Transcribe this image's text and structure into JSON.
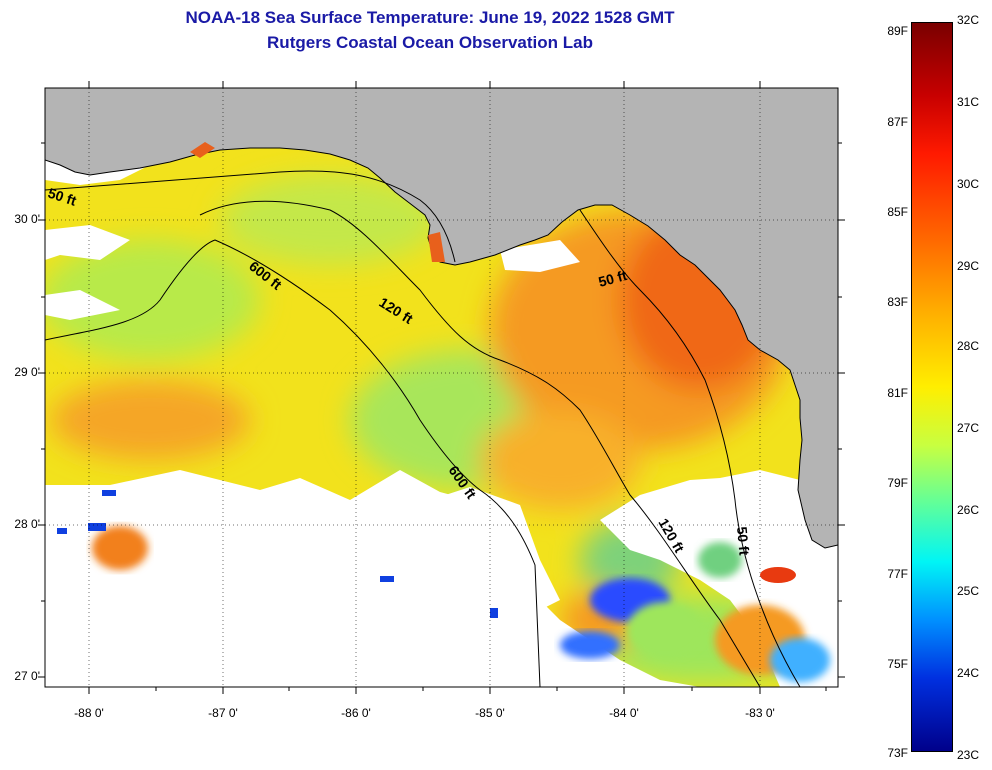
{
  "title": {
    "line1": "NOAA-18 Sea Surface Temperature:  June 19, 2022 1528 GMT",
    "line2": "Rutgers Coastal Ocean Observation Lab"
  },
  "map": {
    "latitude_labels": [
      "30 0'",
      "29 0'",
      "28 0'",
      "27 0'"
    ],
    "longitude_labels": [
      "-88 0'",
      "-87 0'",
      "-86 0'",
      "-85 0'",
      "-84 0'",
      "-83 0'"
    ],
    "contour_labels": [
      "50 ft",
      "600 ft",
      "120 ft",
      "50 ft",
      "600 ft",
      "120 ft",
      "50 ft"
    ],
    "colors": {
      "land": "#b4b4b4",
      "cloud": "#ffffff",
      "warm": "#f08a18",
      "mid": "#f2e21c",
      "cool": "#9ee65c"
    }
  },
  "colorbar": {
    "fahrenheit_labels": [
      "89F",
      "87F",
      "85F",
      "83F",
      "81F",
      "79F",
      "77F",
      "75F",
      "73F"
    ],
    "celsius_labels": [
      "32C",
      "31C",
      "30C",
      "29C",
      "28C",
      "27C",
      "26C",
      "25C",
      "24C",
      "23C"
    ],
    "range_f": [
      73,
      89
    ],
    "range_c": [
      23,
      32
    ]
  }
}
